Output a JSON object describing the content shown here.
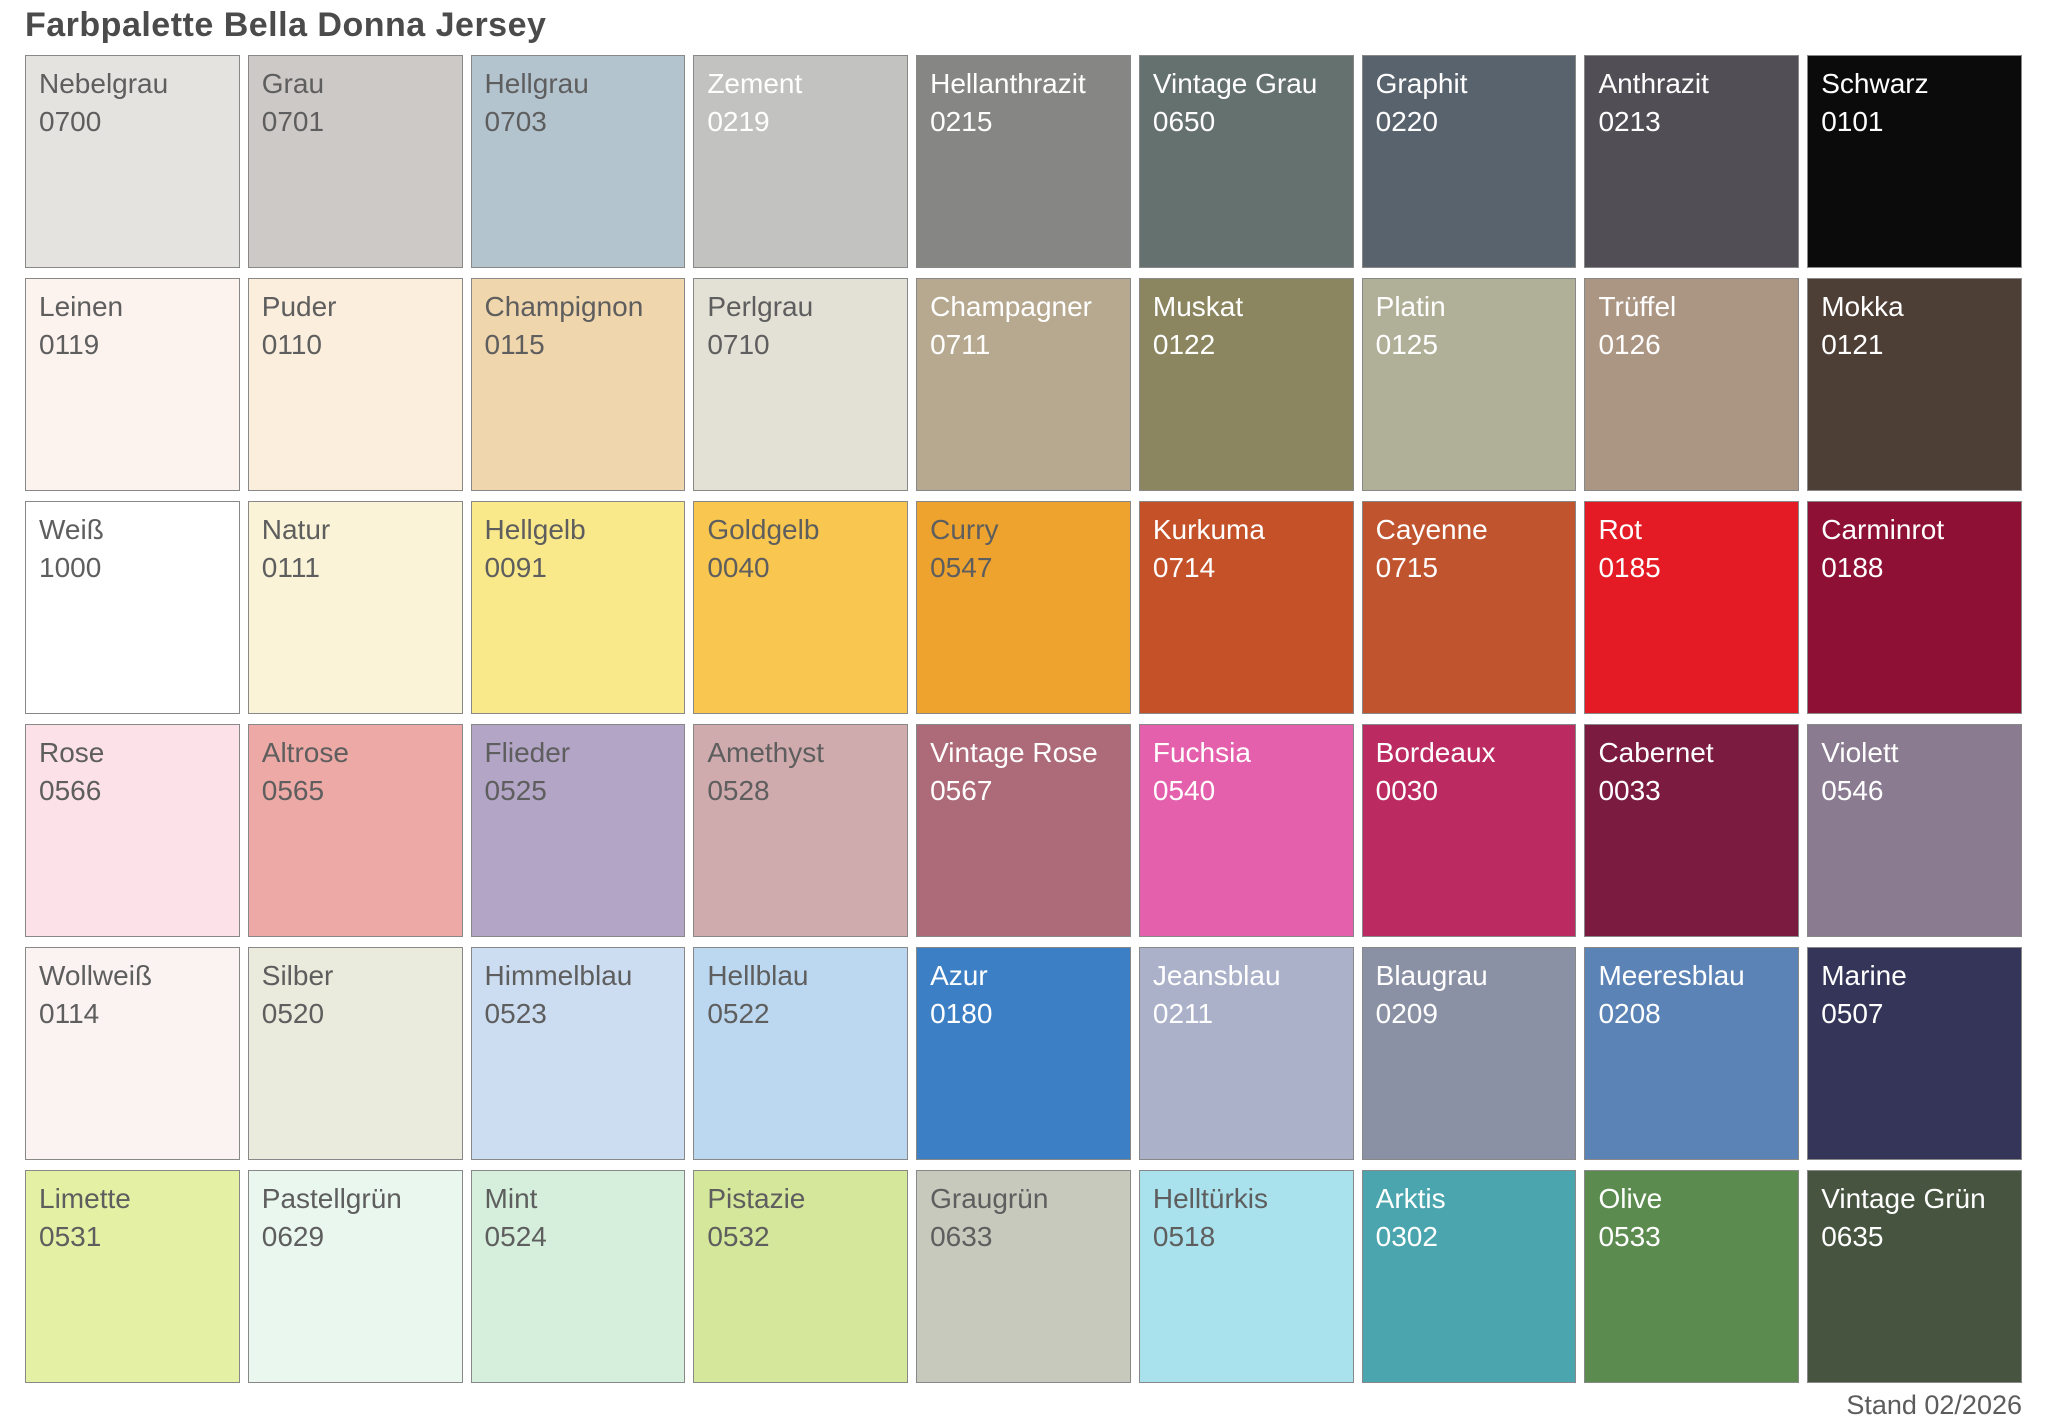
{
  "page": {
    "title": "Farbpalette Bella Donna Jersey",
    "footer": "Stand 02/2026"
  },
  "palette": {
    "rows": 6,
    "cols": 9,
    "styles": {
      "dark_text": "#5e5e5e",
      "light_text": "#ffffff",
      "border": "#888888"
    },
    "swatches": [
      {
        "name": "Nebelgrau",
        "code": "0700",
        "color": "#e4e3e0",
        "text": "dark"
      },
      {
        "name": "Grau",
        "code": "0701",
        "color": "#cdc9c6",
        "text": "dark"
      },
      {
        "name": "Hellgrau",
        "code": "0703",
        "color": "#b4c4cf",
        "text": "dark"
      },
      {
        "name": "Zement",
        "code": "0219",
        "color": "#c2c3c0",
        "text": "light"
      },
      {
        "name": "Hellanthrazit",
        "code": "0215",
        "color": "#868684",
        "text": "light"
      },
      {
        "name": "Vintage Grau",
        "code": "0650",
        "color": "#65716e",
        "text": "light"
      },
      {
        "name": "Graphit",
        "code": "0220",
        "color": "#59636e",
        "text": "light"
      },
      {
        "name": "Anthrazit",
        "code": "0213",
        "color": "#514e55",
        "text": "light"
      },
      {
        "name": "Schwarz",
        "code": "0101",
        "color": "#0b0b0b",
        "text": "light"
      },
      {
        "name": "Leinen",
        "code": "0119",
        "color": "#fcf2ee",
        "text": "dark"
      },
      {
        "name": "Puder",
        "code": "0110",
        "color": "#fbeedd",
        "text": "dark"
      },
      {
        "name": "Champignon",
        "code": "0115",
        "color": "#f0d6ac",
        "text": "dark"
      },
      {
        "name": "Perlgrau",
        "code": "0710",
        "color": "#e3e0d6",
        "text": "dark"
      },
      {
        "name": "Champagner",
        "code": "0711",
        "color": "#b6a990",
        "text": "light"
      },
      {
        "name": "Muskat",
        "code": "0122",
        "color": "#8b8660",
        "text": "light"
      },
      {
        "name": "Platin",
        "code": "0125",
        "color": "#b0b099",
        "text": "light"
      },
      {
        "name": "Trüffel",
        "code": "0126",
        "color": "#ab9583",
        "text": "light"
      },
      {
        "name": "Mokka",
        "code": "0121",
        "color": "#4d3e36",
        "text": "light"
      },
      {
        "name": "Weiß",
        "code": "1000",
        "color": "#ffffff",
        "text": "dark"
      },
      {
        "name": "Natur",
        "code": "0111",
        "color": "#faf3d8",
        "text": "dark"
      },
      {
        "name": "Hellgelb",
        "code": "0091",
        "color": "#fae98a",
        "text": "dark"
      },
      {
        "name": "Goldgelb",
        "code": "0040",
        "color": "#f9c74f",
        "text": "dark"
      },
      {
        "name": "Curry",
        "code": "0547",
        "color": "#eda32d",
        "text": "dark"
      },
      {
        "name": "Kurkuma",
        "code": "0714",
        "color": "#c45128",
        "text": "light"
      },
      {
        "name": "Cayenne",
        "code": "0715",
        "color": "#c0542e",
        "text": "light"
      },
      {
        "name": "Rot",
        "code": "0185",
        "color": "#e41b24",
        "text": "light"
      },
      {
        "name": "Carminrot",
        "code": "0188",
        "color": "#8e1034",
        "text": "light"
      },
      {
        "name": "Rose",
        "code": "0566",
        "color": "#fce1e9",
        "text": "dark"
      },
      {
        "name": "Altrose",
        "code": "0565",
        "color": "#eda9a5",
        "text": "dark"
      },
      {
        "name": "Flieder",
        "code": "0525",
        "color": "#b3a5c6",
        "text": "dark"
      },
      {
        "name": "Amethyst",
        "code": "0528",
        "color": "#d0abae",
        "text": "dark"
      },
      {
        "name": "Vintage Rose",
        "code": "0567",
        "color": "#ad6a78",
        "text": "light"
      },
      {
        "name": "Fuchsia",
        "code": "0540",
        "color": "#e45fac",
        "text": "light"
      },
      {
        "name": "Bordeaux",
        "code": "0030",
        "color": "#bb2a61",
        "text": "light"
      },
      {
        "name": "Cabernet",
        "code": "0033",
        "color": "#7c1b40",
        "text": "light"
      },
      {
        "name": "Violett",
        "code": "0546",
        "color": "#8a7b90",
        "text": "light"
      },
      {
        "name": "Wollweiß",
        "code": "0114",
        "color": "#faf3f1",
        "text": "dark"
      },
      {
        "name": "Silber",
        "code": "0520",
        "color": "#eaebdd",
        "text": "dark"
      },
      {
        "name": "Himmelblau",
        "code": "0523",
        "color": "#ccddf2",
        "text": "dark"
      },
      {
        "name": "Hellblau",
        "code": "0522",
        "color": "#bcd8f0",
        "text": "dark"
      },
      {
        "name": "Azur",
        "code": "0180",
        "color": "#3d7fc5",
        "text": "light"
      },
      {
        "name": "Jeansblau",
        "code": "0211",
        "color": "#abb1c9",
        "text": "light"
      },
      {
        "name": "Blaugrau",
        "code": "0209",
        "color": "#8b91a5",
        "text": "light"
      },
      {
        "name": "Meeresblau",
        "code": "0208",
        "color": "#5b83b5",
        "text": "light"
      },
      {
        "name": "Marine",
        "code": "0507",
        "color": "#343559",
        "text": "light"
      },
      {
        "name": "Limette",
        "code": "0531",
        "color": "#e4f1a5",
        "text": "dark"
      },
      {
        "name": "Pastellgrün",
        "code": "0629",
        "color": "#eaf7ef",
        "text": "dark"
      },
      {
        "name": "Mint",
        "code": "0524",
        "color": "#d5efdc",
        "text": "dark"
      },
      {
        "name": "Pistazie",
        "code": "0532",
        "color": "#d5e79b",
        "text": "dark"
      },
      {
        "name": "Graugrün",
        "code": "0633",
        "color": "#c7c9bd",
        "text": "dark"
      },
      {
        "name": "Helltürkis",
        "code": "0518",
        "color": "#a9e1ed",
        "text": "dark"
      },
      {
        "name": "Arktis",
        "code": "0302",
        "color": "#4aa5ae",
        "text": "light"
      },
      {
        "name": "Olive",
        "code": "0533",
        "color": "#5c8b4f",
        "text": "light"
      },
      {
        "name": "Vintage Grün",
        "code": "0635",
        "color": "#475440",
        "text": "light"
      }
    ]
  }
}
